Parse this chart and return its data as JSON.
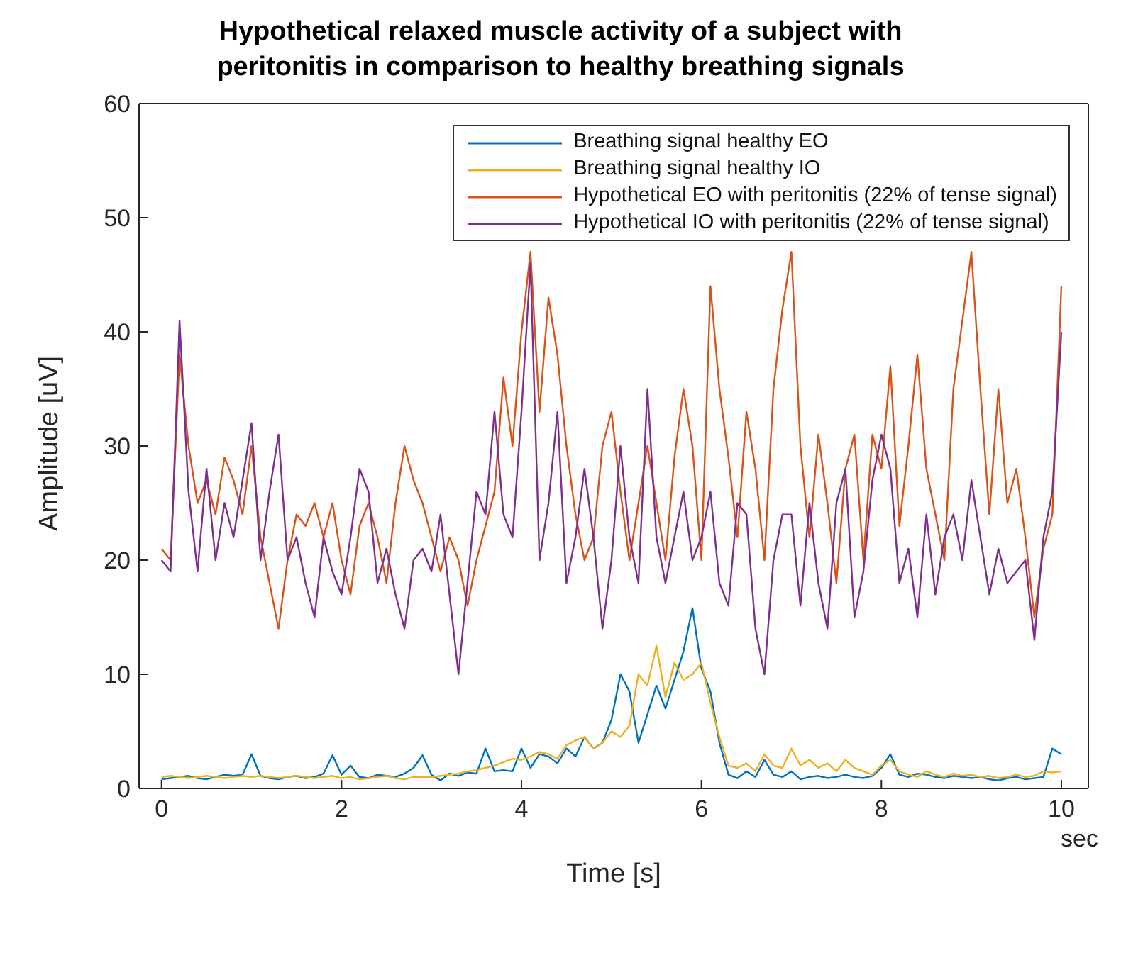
{
  "chart_data": {
    "type": "line",
    "title": "Hypothetical relaxed muscle activity of a subject with peritonitis in comparison to healthy breathing signals",
    "xlabel": "Time [s]",
    "ylabel": "Amplitude [uV]",
    "annotations": [
      "sec"
    ],
    "x": [
      0,
      0.1,
      0.2,
      0.3,
      0.4,
      0.5,
      0.6,
      0.7,
      0.8,
      0.9,
      1,
      1.1,
      1.2,
      1.3,
      1.4,
      1.5,
      1.6,
      1.7,
      1.8,
      1.9,
      2,
      2.1,
      2.2,
      2.3,
      2.4,
      2.5,
      2.6,
      2.7,
      2.8,
      2.9,
      3,
      3.1,
      3.2,
      3.3,
      3.4,
      3.5,
      3.6,
      3.7,
      3.8,
      3.9,
      4,
      4.1,
      4.2,
      4.3,
      4.4,
      4.5,
      4.6,
      4.7,
      4.8,
      4.9,
      5,
      5.1,
      5.2,
      5.3,
      5.4,
      5.5,
      5.6,
      5.7,
      5.8,
      5.9,
      6,
      6.1,
      6.2,
      6.3,
      6.4,
      6.5,
      6.6,
      6.7,
      6.8,
      6.9,
      7,
      7.1,
      7.2,
      7.3,
      7.4,
      7.5,
      7.6,
      7.7,
      7.8,
      7.9,
      8,
      8.1,
      8.2,
      8.3,
      8.4,
      8.5,
      8.6,
      8.7,
      8.8,
      8.9,
      9,
      9.1,
      9.2,
      9.3,
      9.4,
      9.5,
      9.6,
      9.7,
      9.8,
      9.9,
      10
    ],
    "series": [
      {
        "name": "Breathing signal healthy EO",
        "color": "#0072bd",
        "values": [
          0.8,
          0.9,
          1.0,
          1.1,
          0.9,
          0.8,
          1.0,
          1.2,
          1.1,
          1.2,
          3.0,
          1.1,
          0.9,
          0.8,
          1.0,
          1.1,
          0.9,
          1.0,
          1.3,
          2.9,
          1.2,
          2.0,
          1.0,
          0.9,
          1.2,
          1.1,
          1.0,
          1.3,
          1.8,
          2.9,
          1.2,
          0.7,
          1.3,
          1.1,
          1.4,
          1.3,
          3.5,
          1.5,
          1.6,
          1.5,
          3.5,
          1.8,
          3.0,
          2.8,
          2.2,
          3.5,
          2.8,
          4.5,
          3.5,
          4.0,
          6.0,
          10.0,
          8.5,
          4.0,
          6.5,
          9.0,
          7.0,
          9.5,
          12.0,
          15.8,
          10.5,
          8.5,
          4.0,
          1.2,
          0.9,
          1.5,
          1.0,
          2.5,
          1.2,
          1.0,
          1.5,
          0.8,
          1.0,
          1.1,
          0.9,
          1.0,
          1.2,
          1.0,
          0.9,
          1.1,
          1.8,
          3.0,
          1.2,
          1.0,
          1.3,
          1.2,
          1.0,
          0.9,
          1.1,
          1.0,
          0.9,
          1.0,
          0.8,
          0.7,
          0.9,
          1.0,
          0.8,
          0.9,
          1.0,
          3.5,
          3.0
        ]
      },
      {
        "name": "Breathing signal healthy IO",
        "color": "#edb120",
        "values": [
          1.0,
          1.1,
          1.0,
          0.9,
          1.0,
          1.1,
          1.0,
          0.9,
          1.0,
          1.1,
          1.0,
          1.1,
          1.0,
          0.9,
          1.0,
          1.1,
          1.0,
          0.9,
          1.0,
          1.1,
          0.9,
          1.0,
          0.8,
          0.9,
          1.0,
          1.1,
          0.9,
          0.8,
          1.0,
          1.0,
          1.0,
          1.1,
          1.2,
          1.3,
          1.5,
          1.6,
          1.8,
          2.0,
          2.3,
          2.6,
          2.5,
          2.8,
          3.2,
          3.0,
          2.6,
          3.8,
          4.2,
          4.5,
          3.5,
          4.0,
          5.0,
          4.5,
          5.5,
          10.0,
          9.0,
          12.5,
          8.0,
          11.0,
          9.5,
          10.0,
          11.0,
          7.5,
          4.5,
          2.0,
          1.8,
          2.2,
          1.5,
          3.0,
          2.0,
          1.8,
          3.5,
          2.0,
          2.5,
          1.8,
          2.2,
          1.5,
          2.5,
          1.8,
          1.5,
          1.2,
          2.0,
          2.5,
          1.5,
          1.2,
          1.0,
          1.5,
          1.2,
          1.0,
          1.3,
          1.1,
          1.2,
          1.0,
          1.1,
          0.9,
          1.0,
          1.2,
          1.0,
          1.1,
          1.5,
          1.4,
          1.5
        ]
      },
      {
        "name": "Hypothetical EO with peritonitis (22% of tense signal)",
        "color": "#d95319",
        "values": [
          21,
          20,
          38,
          30,
          25,
          27,
          24,
          29,
          27,
          24,
          30,
          22,
          18,
          14,
          20,
          24,
          23,
          25,
          22,
          25,
          20,
          17,
          23,
          25,
          22,
          18,
          25,
          30,
          27,
          25,
          22,
          19,
          22,
          20,
          16,
          20,
          23,
          26,
          36,
          30,
          40,
          47,
          33,
          43,
          38,
          30,
          24,
          20,
          22,
          30,
          33,
          26,
          20,
          25,
          30,
          25,
          20,
          29,
          35,
          30,
          20,
          44,
          35,
          29,
          22,
          33,
          28,
          20,
          35,
          42,
          47,
          30,
          22,
          31,
          25,
          18,
          28,
          31,
          20,
          31,
          28,
          37,
          23,
          30,
          38,
          28,
          24,
          20,
          35,
          41,
          47,
          35,
          24,
          35,
          25,
          28,
          22,
          15,
          21,
          24,
          44
        ]
      },
      {
        "name": "Hypothetical IO with peritonitis (22% of tense signal)",
        "color": "#7e2f8e",
        "values": [
          20,
          19,
          41,
          26,
          19,
          28,
          20,
          25,
          22,
          27,
          32,
          20,
          26,
          31,
          20,
          22,
          18,
          15,
          22,
          19,
          17,
          22,
          28,
          26,
          18,
          21,
          17,
          14,
          20,
          21,
          19,
          24,
          17,
          10,
          18,
          26,
          24,
          33,
          24,
          22,
          33,
          46,
          20,
          25,
          33,
          18,
          22,
          28,
          22,
          14,
          20,
          30,
          22,
          18,
          35,
          22,
          18,
          22,
          26,
          20,
          22,
          26,
          18,
          16,
          25,
          24,
          14,
          10,
          20,
          24,
          24,
          16,
          25,
          18,
          14,
          25,
          28,
          15,
          19,
          27,
          31,
          28,
          18,
          21,
          15,
          24,
          17,
          22,
          24,
          20,
          27,
          22,
          17,
          21,
          18,
          19,
          20,
          13,
          22,
          26,
          40
        ]
      }
    ],
    "xlim": [
      -0.25,
      10.3
    ],
    "ylim": [
      0,
      60
    ],
    "xticks": [
      0,
      2,
      4,
      6,
      8,
      10
    ],
    "yticks": [
      0,
      10,
      20,
      30,
      40,
      50,
      60
    ],
    "legend": "top right",
    "grid": false,
    "marker": "none",
    "line_style": "solid"
  }
}
